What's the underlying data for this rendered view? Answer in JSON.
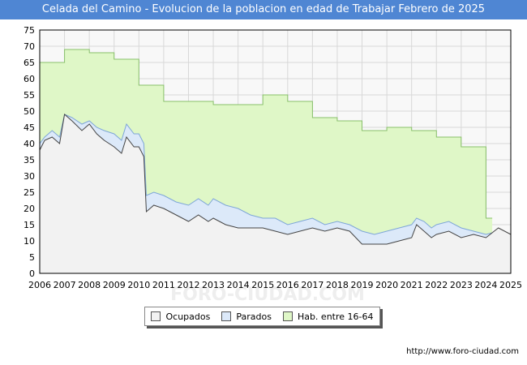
{
  "header": {
    "title": "Celada del Camino - Evolucion de la poblacion en edad de Trabajar Febrero de 2025"
  },
  "footer": {
    "url": "http://www.foro-ciudad.com"
  },
  "watermark": "FORO-CIUDAD.COM",
  "chart_data": {
    "type": "area",
    "title": "Celada del Camino - Evolucion de la poblacion en edad de Trabajar Febrero de 2025",
    "xlabel": "",
    "ylabel": "",
    "xlim": [
      2006,
      2025
    ],
    "ylim": [
      0,
      75
    ],
    "x_ticks": [
      "2006",
      "2007",
      "2008",
      "2009",
      "2010",
      "2011",
      "2012",
      "2013",
      "2014",
      "2015",
      "2016",
      "2017",
      "2018",
      "2019",
      "2020",
      "2021",
      "2022",
      "2023",
      "2024",
      "2025"
    ],
    "y_ticks": [
      0,
      5,
      10,
      15,
      20,
      25,
      30,
      35,
      40,
      45,
      50,
      55,
      60,
      65,
      70,
      75
    ],
    "grid": true,
    "legend": {
      "placement": "bottom-center",
      "labels": [
        "Ocupados",
        "Parados",
        "Hab. entre 16-64"
      ]
    },
    "colors": {
      "ocupados": "#f2f2f2",
      "parados": "#dce9f9",
      "hab": "#dff7c7",
      "ocupados_line": "#444444",
      "parados_line": "#7ea6d8",
      "hab_line": "#88c06a"
    },
    "series": [
      {
        "name": "Hab. entre 16-64",
        "step": true,
        "x": [
          2006,
          2007,
          2008,
          2009,
          2010,
          2011,
          2012,
          2013,
          2014,
          2015,
          2016,
          2017,
          2018,
          2019,
          2020,
          2021,
          2022,
          2023,
          2024
        ],
        "values": [
          65,
          69,
          68,
          66,
          58,
          53,
          53,
          52,
          52,
          55,
          53,
          48,
          47,
          44,
          45,
          44,
          42,
          39,
          17
        ]
      },
      {
        "name": "Parados",
        "x": [
          2006,
          2006.2,
          2006.5,
          2006.8,
          2007,
          2007.3,
          2007.7,
          2008,
          2008.3,
          2008.6,
          2009,
          2009.3,
          2009.5,
          2009.8,
          2010,
          2010.2,
          2010.3,
          2010.6,
          2011,
          2011.5,
          2012,
          2012.4,
          2012.8,
          2013,
          2013.5,
          2014,
          2014.5,
          2015,
          2015.5,
          2016,
          2016.5,
          2017,
          2017.5,
          2018,
          2018.5,
          2019,
          2019.5,
          2020,
          2020.5,
          2021,
          2021.2,
          2021.5,
          2021.8,
          2022,
          2022.5,
          2023,
          2023.5,
          2024,
          2024.5,
          2025
        ],
        "values": [
          40,
          42,
          44,
          42,
          49,
          48,
          46,
          47,
          45,
          44,
          43,
          41,
          46,
          43,
          43,
          40,
          24,
          25,
          24,
          22,
          21,
          23,
          21,
          23,
          21,
          20,
          18,
          17,
          17,
          15,
          16,
          17,
          15,
          16,
          15,
          13,
          12,
          13,
          14,
          15,
          17,
          16,
          14,
          15,
          16,
          14,
          13,
          12,
          13,
          12
        ]
      },
      {
        "name": "Ocupados",
        "x": [
          2006,
          2006.2,
          2006.5,
          2006.8,
          2007,
          2007.3,
          2007.7,
          2008,
          2008.3,
          2008.6,
          2009,
          2009.3,
          2009.5,
          2009.8,
          2010,
          2010.2,
          2010.3,
          2010.6,
          2011,
          2011.5,
          2012,
          2012.4,
          2012.8,
          2013,
          2013.5,
          2014,
          2014.5,
          2015,
          2015.5,
          2016,
          2016.5,
          2017,
          2017.5,
          2018,
          2018.5,
          2019,
          2019.5,
          2020,
          2020.5,
          2021,
          2021.2,
          2021.5,
          2021.8,
          2022,
          2022.5,
          2023,
          2023.5,
          2024,
          2024.5,
          2025
        ],
        "values": [
          38,
          41,
          42,
          40,
          49,
          47,
          44,
          46,
          43,
          41,
          39,
          37,
          42,
          39,
          39,
          36,
          19,
          21,
          20,
          18,
          16,
          18,
          16,
          17,
          15,
          14,
          14,
          14,
          13,
          12,
          13,
          14,
          13,
          14,
          13,
          9,
          9,
          9,
          10,
          11,
          15,
          13,
          11,
          12,
          13,
          11,
          12,
          11,
          14,
          12
        ]
      }
    ]
  }
}
